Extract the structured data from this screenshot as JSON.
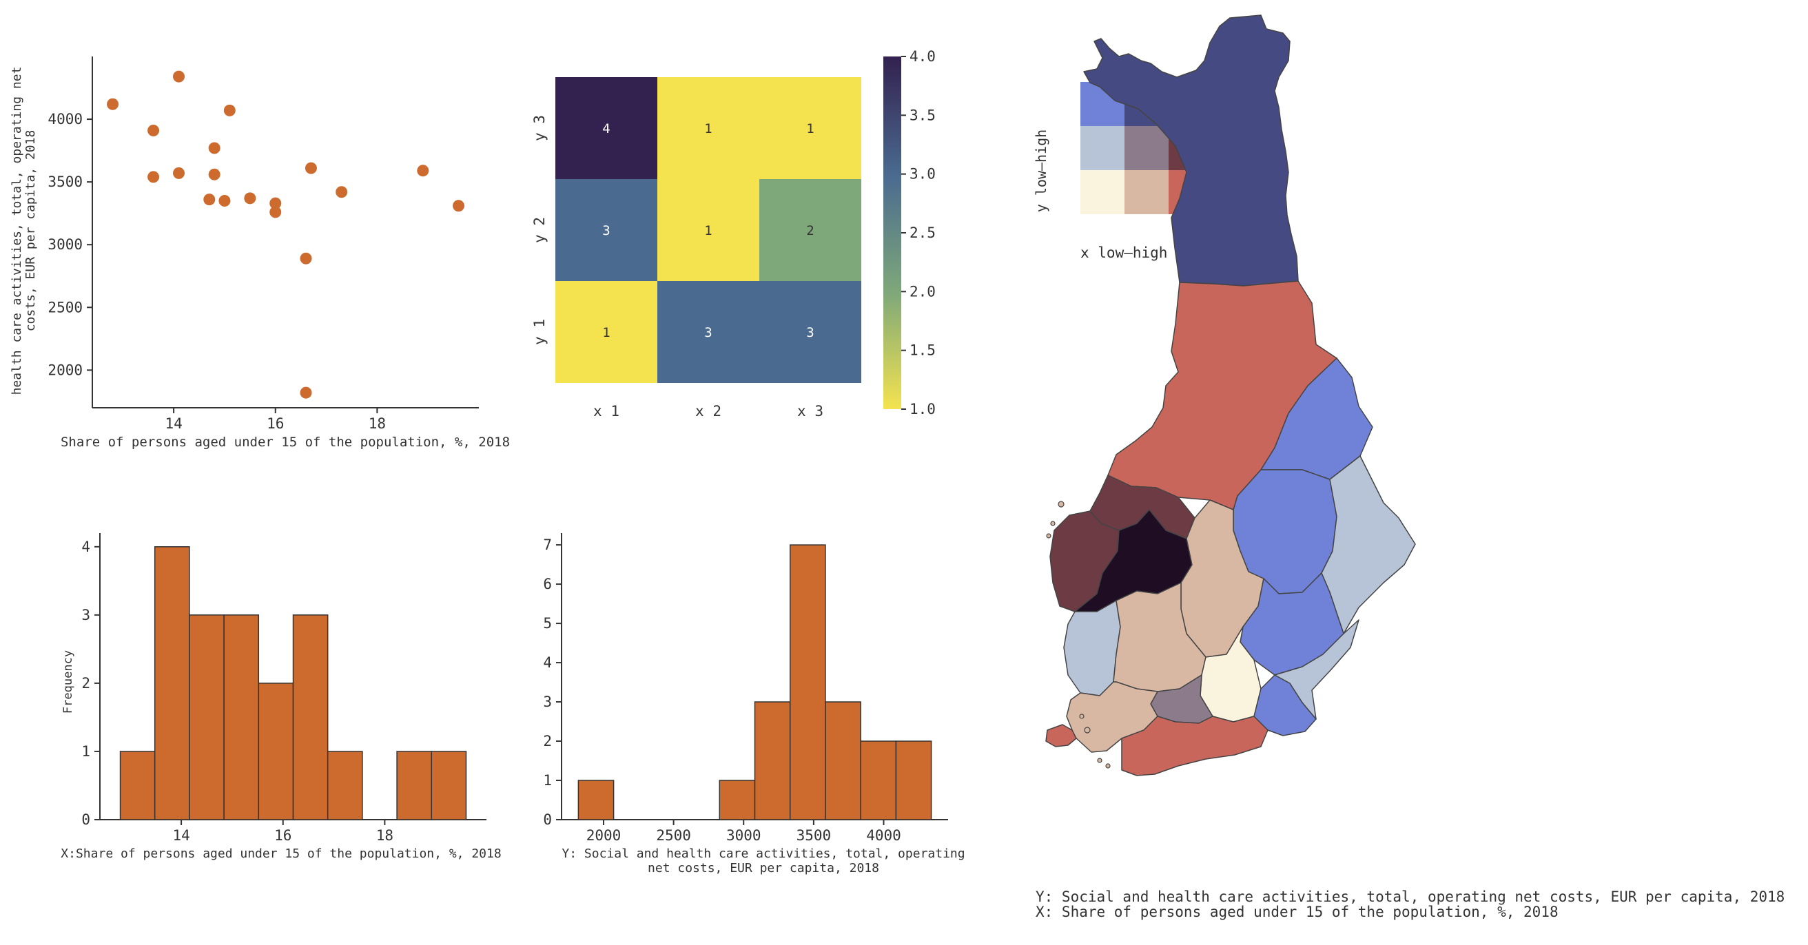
{
  "chart_data": [
    {
      "type": "scatter",
      "xlabel": "Share of persons aged under 15 of the population, %, 2018",
      "ylabel_lines": [
        "health care activities, total, operating net",
        "costs, EUR per capita, 2018"
      ],
      "xlim": [
        12.4,
        20.0
      ],
      "ylim": [
        1700,
        4500
      ],
      "xticks": [
        14,
        16,
        18
      ],
      "yticks": [
        2000,
        2500,
        3000,
        3500,
        4000
      ],
      "points_x": [
        12.8,
        13.6,
        13.6,
        14.1,
        14.1,
        14.7,
        14.8,
        14.8,
        15.0,
        15.1,
        15.5,
        16.0,
        16.0,
        16.6,
        16.6,
        16.7,
        17.3,
        18.9,
        19.6
      ],
      "points_y": [
        4120,
        3910,
        3540,
        4340,
        3570,
        3360,
        3770,
        3560,
        3350,
        4070,
        3370,
        3330,
        3260,
        2890,
        1820,
        3610,
        3420,
        3590,
        3310
      ],
      "color": "#cd6a2d"
    },
    {
      "type": "heatmap",
      "rows": [
        "y 3",
        "y 2",
        "y 1"
      ],
      "cols": [
        "x 1",
        "x 2",
        "x 3"
      ],
      "values": [
        [
          4,
          1,
          1
        ],
        [
          3,
          1,
          2
        ],
        [
          1,
          3,
          3
        ]
      ],
      "vmin": 1.0,
      "vmax": 4.0,
      "colorbar_ticks": [
        "4.0",
        "3.5",
        "3.0",
        "2.5",
        "2.0",
        "1.5",
        "1.0"
      ],
      "colormap": [
        "#f4e34f",
        "#7ea879",
        "#4a6b8f",
        "#33214f"
      ]
    },
    {
      "type": "bar",
      "subtype": "histogram",
      "ylabel": "Frequency",
      "xlabel": "X:Share of persons aged under 15 of the population, %, 2018",
      "bin_edges": [
        12.8,
        13.48,
        14.16,
        14.84,
        15.52,
        16.2,
        16.88,
        17.56,
        18.24,
        18.92,
        19.6
      ],
      "counts": [
        1,
        4,
        3,
        3,
        2,
        3,
        1,
        0,
        1,
        1
      ],
      "xticks": [
        14,
        16,
        18
      ],
      "yticks": [
        0,
        1,
        2,
        3,
        4
      ],
      "xlim": [
        12.4,
        20.0
      ],
      "ylim": [
        0,
        4.2
      ],
      "color": "#cd6a2d"
    },
    {
      "type": "bar",
      "subtype": "histogram",
      "xlabel_lines": [
        "Y: Social and health care activities, total, operating",
        "net costs, EUR per capita, 2018"
      ],
      "bin_edges": [
        1820,
        2072,
        2324,
        2576,
        2828,
        3080,
        3332,
        3584,
        3836,
        4088,
        4340
      ],
      "counts": [
        1,
        0,
        0,
        0,
        1,
        3,
        7,
        3,
        2,
        2
      ],
      "xticks": [
        2000,
        2500,
        3000,
        3500,
        4000
      ],
      "yticks": [
        0,
        1,
        2,
        3,
        4,
        5,
        6,
        7
      ],
      "xlim": [
        1700,
        4460
      ],
      "ylim": [
        0,
        7.3
      ],
      "color": "#cd6a2d"
    }
  ],
  "bivariate_legend": {
    "ylabel": "y low–high",
    "xlabel": "x low–high",
    "grid": [
      [
        "#6f82d8",
        "#454a82",
        "#1f0d24"
      ],
      [
        "#b7c3d6",
        "#8c7b8b",
        "#6d3b44"
      ],
      [
        "#faf4df",
        "#d8b8a3",
        "#c8665c"
      ]
    ]
  },
  "map": {
    "caption_y": "Y: Social and health care activities, total, operating net costs, EUR per capita, 2018",
    "caption_x": "X: Share of persons aged under 15 of the population, %, 2018"
  }
}
